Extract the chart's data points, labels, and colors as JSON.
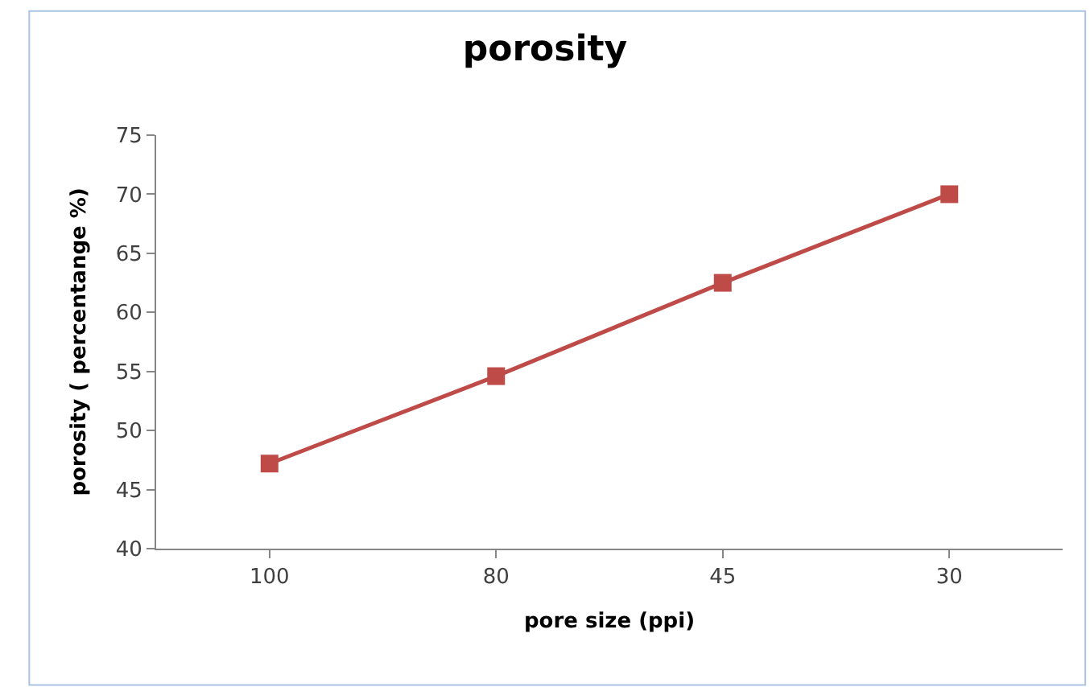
{
  "chart_data": {
    "type": "line",
    "title": "porosity",
    "xlabel": "pore size (ppi)",
    "ylabel": "porosity ( percentange %)",
    "categories": [
      "100",
      "80",
      "45",
      "30"
    ],
    "series": [
      {
        "color": "#be4b48",
        "values": [
          47.2,
          54.6,
          62.5,
          70.0
        ]
      }
    ],
    "ylim": [
      40,
      75
    ],
    "yticks": [
      40,
      45,
      50,
      55,
      60,
      65,
      70,
      75
    ],
    "legend": false,
    "marker": "square",
    "line_style": "solid"
  }
}
